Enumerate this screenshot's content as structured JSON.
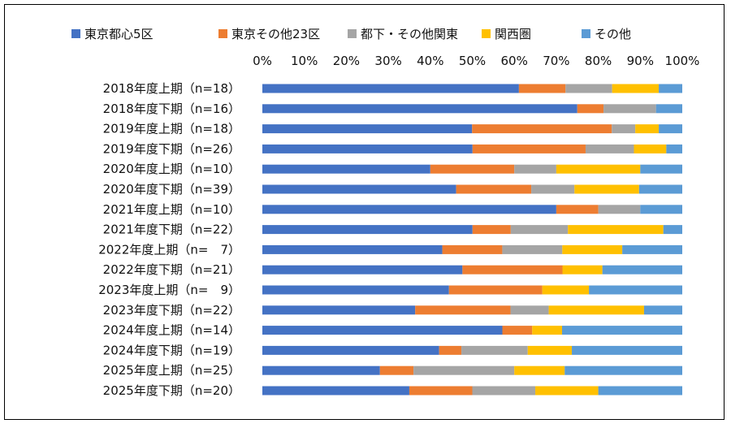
{
  "chart_data": {
    "type": "bar",
    "orientation": "horizontal",
    "stacked": "percent",
    "categories": [
      "2018年度上期（n=18）",
      "2018年度下期（n=16）",
      "2019年度上期（n=18）",
      "2019年度下期（n=26）",
      "2020年度上期（n=10）",
      "2020年度下期（n=39）",
      "2021年度上期（n=10）",
      "2021年度下期（n=22）",
      "2022年度上期（n=　7）",
      "2022年度下期（n=21）",
      "2023年度上期（n=　9）",
      "2023年度下期（n=22）",
      "2024年度上期（n=14）",
      "2024年度下期（n=19）",
      "2025年度上期（n=25）",
      "2025年度下期（n=20）"
    ],
    "series": [
      {
        "name": "東京都心5区",
        "color": "#4472C4",
        "values": [
          61.1,
          75.0,
          50.0,
          50.0,
          40.0,
          46.2,
          70.0,
          50.0,
          42.9,
          47.6,
          44.4,
          36.4,
          57.1,
          42.1,
          28.0,
          35.0
        ]
      },
      {
        "name": "東京その他23区",
        "color": "#ED7D31",
        "values": [
          11.1,
          6.25,
          33.3,
          26.9,
          20.0,
          17.9,
          10.0,
          9.1,
          14.3,
          23.8,
          22.2,
          22.7,
          7.1,
          5.3,
          8.0,
          15.0
        ]
      },
      {
        "name": "都下・その他関東",
        "color": "#A5A5A5",
        "values": [
          11.1,
          12.5,
          5.6,
          11.5,
          10.0,
          10.3,
          10.0,
          13.6,
          14.3,
          0.0,
          0.0,
          9.1,
          0.0,
          15.8,
          24.0,
          15.0
        ]
      },
      {
        "name": "関西圏",
        "color": "#FFC000",
        "values": [
          11.1,
          0.0,
          5.6,
          7.7,
          20.0,
          15.4,
          0.0,
          22.7,
          14.3,
          9.5,
          11.1,
          22.7,
          7.1,
          10.5,
          12.0,
          15.0
        ]
      },
      {
        "name": "その他",
        "color": "#5B9BD5",
        "values": [
          5.6,
          6.25,
          5.6,
          3.8,
          10.0,
          10.3,
          10.0,
          4.5,
          14.3,
          19.0,
          22.2,
          9.1,
          28.6,
          26.3,
          28.0,
          20.0
        ]
      }
    ],
    "xlim": [
      0,
      100
    ],
    "xticks": [
      "0%",
      "10%",
      "20%",
      "30%",
      "40%",
      "50%",
      "60%",
      "70%",
      "80%",
      "90%",
      "100%"
    ],
    "legend_position": "top",
    "grid": false
  }
}
